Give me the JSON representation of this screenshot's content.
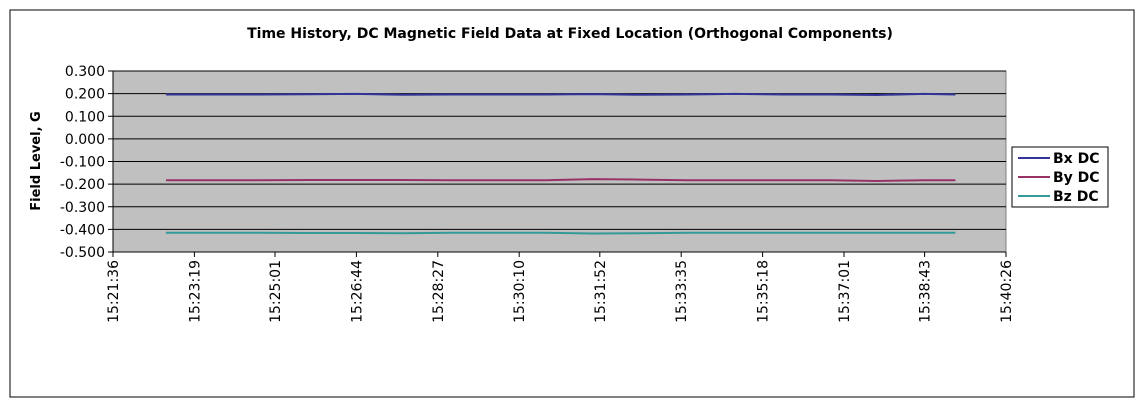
{
  "chart_data": {
    "type": "line",
    "title": "Time History, DC Magnetic Field Data at Fixed Location (Orthogonal Components)",
    "y_label": "Field Level, G",
    "x": [
      55363,
      55423,
      55483,
      55543,
      55603,
      55663,
      55723,
      55783,
      55843,
      55903,
      55963,
      56023,
      56083,
      56143,
      56203,
      56263,
      56323,
      56362
    ],
    "series": [
      {
        "name": "Bx DC",
        "color": "#333399",
        "values": [
          0.196,
          0.196,
          0.196,
          0.197,
          0.199,
          0.195,
          0.196,
          0.196,
          0.196,
          0.198,
          0.195,
          0.196,
          0.199,
          0.196,
          0.196,
          0.194,
          0.199,
          0.196
        ]
      },
      {
        "name": "By DC",
        "color": "#993366",
        "values": [
          -0.183,
          -0.183,
          -0.183,
          -0.182,
          -0.182,
          -0.182,
          -0.183,
          -0.183,
          -0.183,
          -0.178,
          -0.18,
          -0.183,
          -0.183,
          -0.183,
          -0.183,
          -0.186,
          -0.183,
          -0.183
        ]
      },
      {
        "name": "Bz DC",
        "color": "#339999",
        "values": [
          -0.415,
          -0.415,
          -0.415,
          -0.416,
          -0.416,
          -0.417,
          -0.415,
          -0.415,
          -0.415,
          -0.418,
          -0.417,
          -0.415,
          -0.415,
          -0.415,
          -0.415,
          -0.415,
          -0.415,
          -0.415
        ]
      }
    ],
    "xlim": [
      55296,
      56426
    ],
    "xticks": [
      {
        "value": 55296,
        "label": "15:21:36"
      },
      {
        "value": 55399,
        "label": "15:23:19"
      },
      {
        "value": 55501,
        "label": "15:25:01"
      },
      {
        "value": 55604,
        "label": "15:26:44"
      },
      {
        "value": 55707,
        "label": "15:28:27"
      },
      {
        "value": 55810,
        "label": "15:30:10"
      },
      {
        "value": 55912,
        "label": "15:31:52"
      },
      {
        "value": 56015,
        "label": "15:33:35"
      },
      {
        "value": 56118,
        "label": "15:35:18"
      },
      {
        "value": 56221,
        "label": "15:37:01"
      },
      {
        "value": 56323,
        "label": "15:38:43"
      },
      {
        "value": 56426,
        "label": "15:40:26"
      }
    ],
    "ylim": [
      -0.5,
      0.3
    ],
    "yticks": [
      {
        "value": 0.3,
        "label": "0.300"
      },
      {
        "value": 0.2,
        "label": "0.200"
      },
      {
        "value": 0.1,
        "label": "0.100"
      },
      {
        "value": 0,
        "label": "0.000"
      },
      {
        "value": -0.1,
        "label": "-0.100"
      },
      {
        "value": -0.2,
        "label": "-0.200"
      },
      {
        "value": -0.3,
        "label": "-0.300"
      },
      {
        "value": -0.4,
        "label": "-0.400"
      },
      {
        "value": -0.5,
        "label": "-0.500"
      }
    ],
    "grid": true,
    "legend": "right"
  }
}
